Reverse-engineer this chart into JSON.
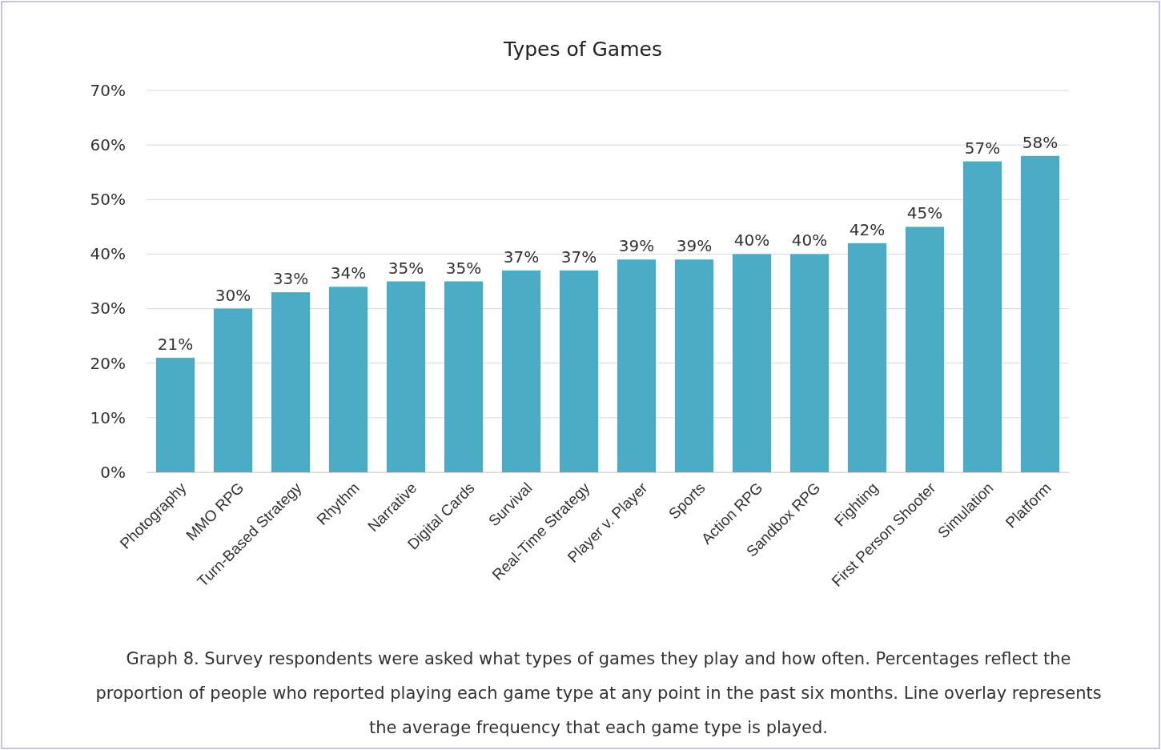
{
  "chart_data": {
    "type": "bar",
    "title": "Types of Games",
    "categories": [
      "Photography",
      "MMO RPG",
      "Turn-Based Strategy",
      "Rhythm",
      "Narrative",
      "Digital Cards",
      "Survival",
      "Real-Time Strategy",
      "Player v. Player",
      "Sports",
      "Action RPG",
      "Sandbox RPG",
      "Fighting",
      "First Person Shooter",
      "Simulation",
      "Platform"
    ],
    "values": [
      21,
      30,
      33,
      34,
      35,
      35,
      37,
      37,
      39,
      39,
      40,
      40,
      42,
      45,
      57,
      58
    ],
    "value_labels": [
      "21%",
      "30%",
      "33%",
      "34%",
      "35%",
      "35%",
      "37%",
      "37%",
      "39%",
      "39%",
      "40%",
      "40%",
      "42%",
      "45%",
      "57%",
      "58%"
    ],
    "color": "#4bacc6",
    "ylim": [
      0,
      70
    ],
    "yticks": [
      {
        "value": 0,
        "label": "0%"
      },
      {
        "value": 10,
        "label": "10%"
      },
      {
        "value": 20,
        "label": "20%"
      },
      {
        "value": 30,
        "label": "30%"
      },
      {
        "value": 40,
        "label": "40%"
      },
      {
        "value": 50,
        "label": "50%"
      },
      {
        "value": 60,
        "label": "60%"
      },
      {
        "value": 70,
        "label": "70%"
      }
    ],
    "grid": "y",
    "annotations": [
      "Graph 8. Survey respondents were asked what types of games they play and how often. Percentages reflect the proportion of people who reported playing each game type at any point in the past six months. Line overlay represents the average frequency that each game type is played."
    ]
  }
}
